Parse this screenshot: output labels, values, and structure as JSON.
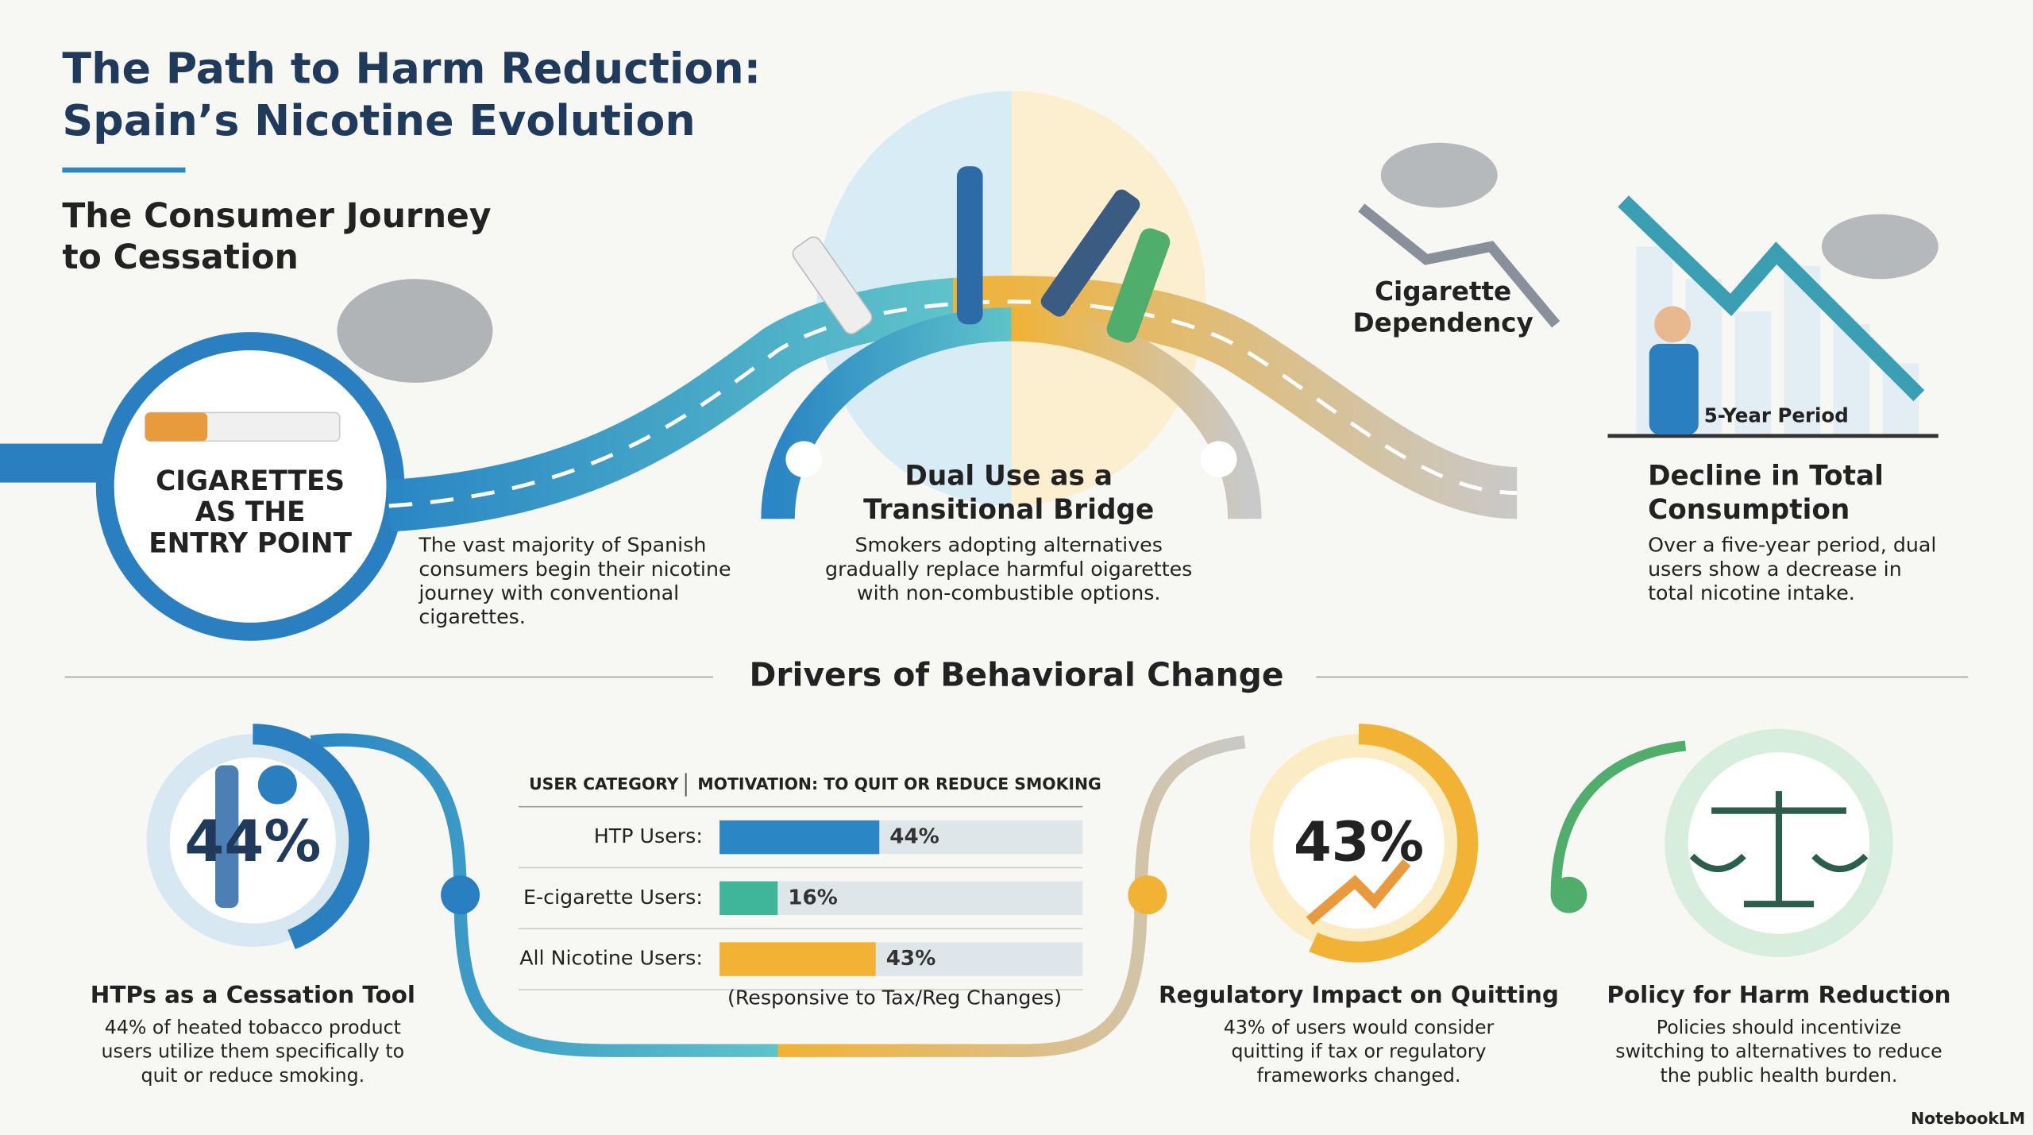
{
  "header": {
    "title": [
      "The Path to Harm Reduction:",
      "Spain’s Nicotine Evolution"
    ],
    "subtitle": [
      "The Consumer Journey",
      "to Cessation"
    ]
  },
  "journey": {
    "entry": {
      "label": [
        "CIGARETTES",
        "AS THE",
        "ENTRY POINT"
      ],
      "text": [
        "The vast majority of Spanish",
        "consumers begin their nicotine",
        "journey with conventional",
        "cigarettes."
      ]
    },
    "bridge": {
      "title": [
        "Dual Use as a",
        "Transitional Bridge"
      ],
      "text": [
        "Smokers adopting alternatives",
        "gradually replace harmful oigarettes",
        "with non-combustible options."
      ]
    },
    "dependency": {
      "label": [
        "Cigarette",
        "Dependency"
      ]
    },
    "decline": {
      "badge": "5-Year Period",
      "title": [
        "Decline in Total",
        "Consumption"
      ],
      "text": [
        "Over a five-year period, dual",
        "users show a decrease in",
        "total nicotine intake."
      ]
    }
  },
  "drivers": {
    "title": "Drivers of Behavioral Change",
    "htp": {
      "stat": "44%",
      "title": "HTPs as a Cessation Tool",
      "text": [
        "44% of heated tobacco product",
        "users utilize them specifically to",
        "quit or reduce smoking."
      ]
    },
    "table": {
      "headers": [
        "USER CATEGORY",
        "MOTIVATION: TO QUIT OR REDUCE SMOKING"
      ],
      "xlim": [
        0,
        100
      ],
      "rows": [
        {
          "label": "HTP Users:",
          "value": 44,
          "value_label": "44%",
          "color": "#2a86c4"
        },
        {
          "label": "E-cigarette Users:",
          "value": 16,
          "value_label": "16%",
          "color": "#3fb59a"
        },
        {
          "label": "All Nicotine Users:",
          "value": 43,
          "value_label": "43%",
          "color": "#f2b233"
        }
      ],
      "note": "(Responsive to Tax/Reg Changes)"
    },
    "regulatory": {
      "stat": "43%",
      "title": "Regulatory Impact on Quitting",
      "text": [
        "43% of users would consider",
        "quitting if tax or regulatory",
        "frameworks changed."
      ]
    },
    "policy": {
      "title": "Policy for Harm Reduction",
      "text": [
        "Policies should incentivize",
        "switching to alternatives to reduce",
        "the public health burden."
      ]
    }
  },
  "footer": {
    "brand": "NotebookLM"
  }
}
